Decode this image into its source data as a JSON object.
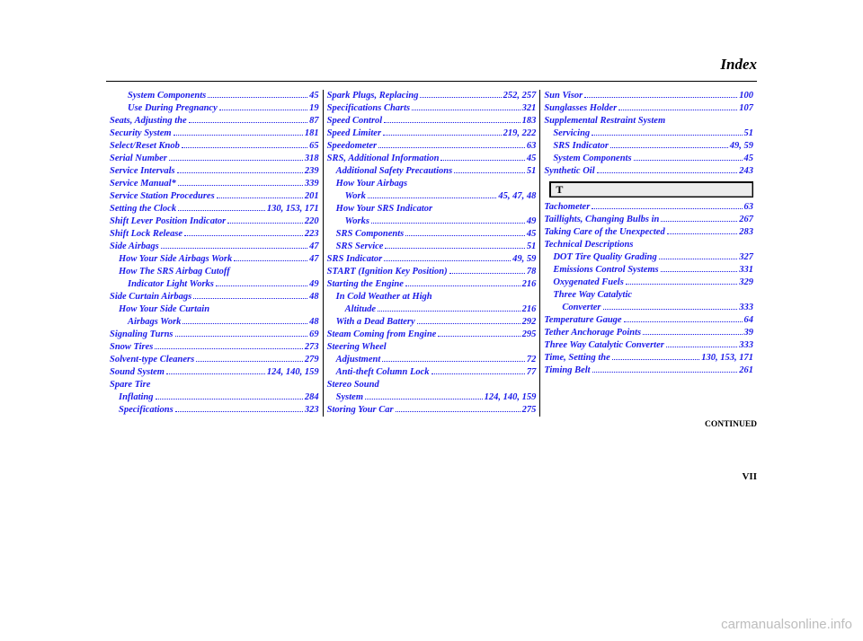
{
  "header": {
    "title": "Index"
  },
  "footer": {
    "page_num": "VII",
    "continued": "CONTINUED",
    "watermark": "carmanualsonline.info"
  },
  "style": {
    "link_color": "#1a1ae8",
    "text_color": "#000000",
    "bg_color": "#ffffff",
    "rule_color": "#000000",
    "font_family": "Georgia, 'Times New Roman', serif",
    "label_fontsize": 10.5,
    "line_height": 14
  },
  "columns": [
    {
      "entries": [
        {
          "type": "row",
          "indent": 2,
          "label": "System Components",
          "pages": "45"
        },
        {
          "type": "row",
          "indent": 2,
          "label": "Use During Pregnancy",
          "pages": "19"
        },
        {
          "type": "row",
          "indent": 0,
          "label": "Seats, Adjusting the",
          "pages": "87"
        },
        {
          "type": "row",
          "indent": 0,
          "label": "Security System",
          "pages": "181"
        },
        {
          "type": "row",
          "indent": 0,
          "label": "Select/Reset Knob",
          "pages": "65"
        },
        {
          "type": "row",
          "indent": 0,
          "label": "Serial Number",
          "pages": "318"
        },
        {
          "type": "row",
          "indent": 0,
          "label": "Service Intervals",
          "pages": "239"
        },
        {
          "type": "row",
          "indent": 0,
          "label": "Service Manual*",
          "pages": "339"
        },
        {
          "type": "row",
          "indent": 0,
          "label": "Service Station Procedures",
          "pages": "201"
        },
        {
          "type": "row",
          "indent": 0,
          "label": "Setting the Clock",
          "pages": "130, 153, 171"
        },
        {
          "type": "row",
          "indent": 0,
          "label": "Shift Lever Position Indicator",
          "pages": "220"
        },
        {
          "type": "row",
          "indent": 0,
          "label": "Shift Lock Release",
          "pages": "223"
        },
        {
          "type": "row",
          "indent": 0,
          "label": "Side Airbags",
          "pages": "47"
        },
        {
          "type": "row",
          "indent": 1,
          "label": "How Your Side Airbags Work",
          "pages": "47"
        },
        {
          "type": "line",
          "indent": 1,
          "label": "How The SRS Airbag Cutoff"
        },
        {
          "type": "row",
          "indent": 2,
          "label": "Indicator Light Works",
          "pages": "49"
        },
        {
          "type": "row",
          "indent": 0,
          "label": "Side Curtain Airbags",
          "pages": "48"
        },
        {
          "type": "line",
          "indent": 1,
          "label": "How Your Side Curtain"
        },
        {
          "type": "row",
          "indent": 2,
          "label": "Airbags Work",
          "pages": "48"
        },
        {
          "type": "row",
          "indent": 0,
          "label": "Signaling Turns",
          "pages": "69"
        },
        {
          "type": "row",
          "indent": 0,
          "label": "Snow Tires",
          "pages": "273"
        },
        {
          "type": "row",
          "indent": 0,
          "label": "Solvent-type Cleaners",
          "pages": "279"
        },
        {
          "type": "row",
          "indent": 0,
          "label": "Sound System",
          "pages": "124, 140, 159"
        },
        {
          "type": "line",
          "indent": 0,
          "label": "Spare Tire"
        },
        {
          "type": "row",
          "indent": 1,
          "label": "Inflating",
          "pages": "284"
        },
        {
          "type": "row",
          "indent": 1,
          "label": "Specifications",
          "pages": "323"
        }
      ]
    },
    {
      "entries": [
        {
          "type": "row",
          "indent": 0,
          "label": "Spark Plugs, Replacing",
          "pages": "252, 257"
        },
        {
          "type": "row",
          "indent": 0,
          "label": "Specifications Charts",
          "pages": "321"
        },
        {
          "type": "row",
          "indent": 0,
          "label": "Speed Control",
          "pages": "183"
        },
        {
          "type": "row",
          "indent": 0,
          "label": "Speed Limiter",
          "pages": "219, 222"
        },
        {
          "type": "row",
          "indent": 0,
          "label": "Speedometer",
          "pages": "63"
        },
        {
          "type": "row",
          "indent": 0,
          "label": "SRS, Additional Information",
          "pages": "45"
        },
        {
          "type": "row",
          "indent": 1,
          "label": "Additional Safety Precautions",
          "pages": "51"
        },
        {
          "type": "line",
          "indent": 1,
          "label": "How Your Airbags"
        },
        {
          "type": "row",
          "indent": 2,
          "label": "Work",
          "pages": "45, 47, 48"
        },
        {
          "type": "line",
          "indent": 1,
          "label": "How Your SRS Indicator"
        },
        {
          "type": "row",
          "indent": 2,
          "label": "Works",
          "pages": "49"
        },
        {
          "type": "row",
          "indent": 1,
          "label": "SRS Components",
          "pages": "45"
        },
        {
          "type": "row",
          "indent": 1,
          "label": "SRS Service",
          "pages": "51"
        },
        {
          "type": "row",
          "indent": 0,
          "label": "SRS Indicator",
          "pages": "49, 59"
        },
        {
          "type": "row",
          "indent": 0,
          "label": "START (Ignition Key Position)",
          "pages": "78"
        },
        {
          "type": "row",
          "indent": 0,
          "label": "Starting the Engine",
          "pages": "216"
        },
        {
          "type": "line",
          "indent": 1,
          "label": "In Cold Weather at High"
        },
        {
          "type": "row",
          "indent": 2,
          "label": "Altitude",
          "pages": "216"
        },
        {
          "type": "row",
          "indent": 1,
          "label": "With a Dead Battery",
          "pages": "292"
        },
        {
          "type": "row",
          "indent": 0,
          "label": "Steam Coming from Engine",
          "pages": "295"
        },
        {
          "type": "line",
          "indent": 0,
          "label": "Steering Wheel"
        },
        {
          "type": "row",
          "indent": 1,
          "label": "Adjustment",
          "pages": "72"
        },
        {
          "type": "row",
          "indent": 1,
          "label": "Anti-theft Column Lock",
          "pages": "77"
        },
        {
          "type": "line",
          "indent": 0,
          "label": "Stereo Sound"
        },
        {
          "type": "row",
          "indent": 1,
          "label": "System",
          "pages": "124, 140, 159"
        },
        {
          "type": "row",
          "indent": 0,
          "label": "Storing Your Car",
          "pages": "275"
        }
      ]
    },
    {
      "entries": [
        {
          "type": "row",
          "indent": 0,
          "label": "Sun Visor",
          "pages": "100"
        },
        {
          "type": "row",
          "indent": 0,
          "label": "Sunglasses Holder",
          "pages": "107"
        },
        {
          "type": "line",
          "indent": 0,
          "label": "Supplemental Restraint System"
        },
        {
          "type": "row",
          "indent": 1,
          "label": "Servicing",
          "pages": "51"
        },
        {
          "type": "row",
          "indent": 1,
          "label": "SRS Indicator",
          "pages": "49, 59"
        },
        {
          "type": "row",
          "indent": 1,
          "label": "System Components",
          "pages": "45"
        },
        {
          "type": "row",
          "indent": 0,
          "label": "Synthetic Oil",
          "pages": "243"
        },
        {
          "type": "section",
          "letter": "T"
        },
        {
          "type": "row",
          "indent": 0,
          "label": "Tachometer",
          "pages": "63"
        },
        {
          "type": "row",
          "indent": 0,
          "label": "Taillights, Changing Bulbs in",
          "pages": "267"
        },
        {
          "type": "row",
          "indent": 0,
          "label": "Taking Care of the Unexpected",
          "pages": "283"
        },
        {
          "type": "line",
          "indent": 0,
          "label": "Technical Descriptions"
        },
        {
          "type": "row",
          "indent": 1,
          "label": "DOT Tire Quality Grading",
          "pages": "327"
        },
        {
          "type": "row",
          "indent": 1,
          "label": "Emissions Control Systems",
          "pages": "331"
        },
        {
          "type": "row",
          "indent": 1,
          "label": "Oxygenated Fuels",
          "pages": "329"
        },
        {
          "type": "line",
          "indent": 1,
          "label": "Three Way Catalytic"
        },
        {
          "type": "row",
          "indent": 2,
          "label": "Converter",
          "pages": "333"
        },
        {
          "type": "row",
          "indent": 0,
          "label": "Temperature Gauge",
          "pages": "64"
        },
        {
          "type": "row",
          "indent": 0,
          "label": "Tether Anchorage Points",
          "pages": "39"
        },
        {
          "type": "row",
          "indent": 0,
          "label": "Three Way Catalytic Converter",
          "pages": "333"
        },
        {
          "type": "row",
          "indent": 0,
          "label": "Time, Setting the",
          "pages": "130, 153, 171"
        },
        {
          "type": "row",
          "indent": 0,
          "label": "Timing Belt",
          "pages": "261"
        }
      ]
    }
  ]
}
